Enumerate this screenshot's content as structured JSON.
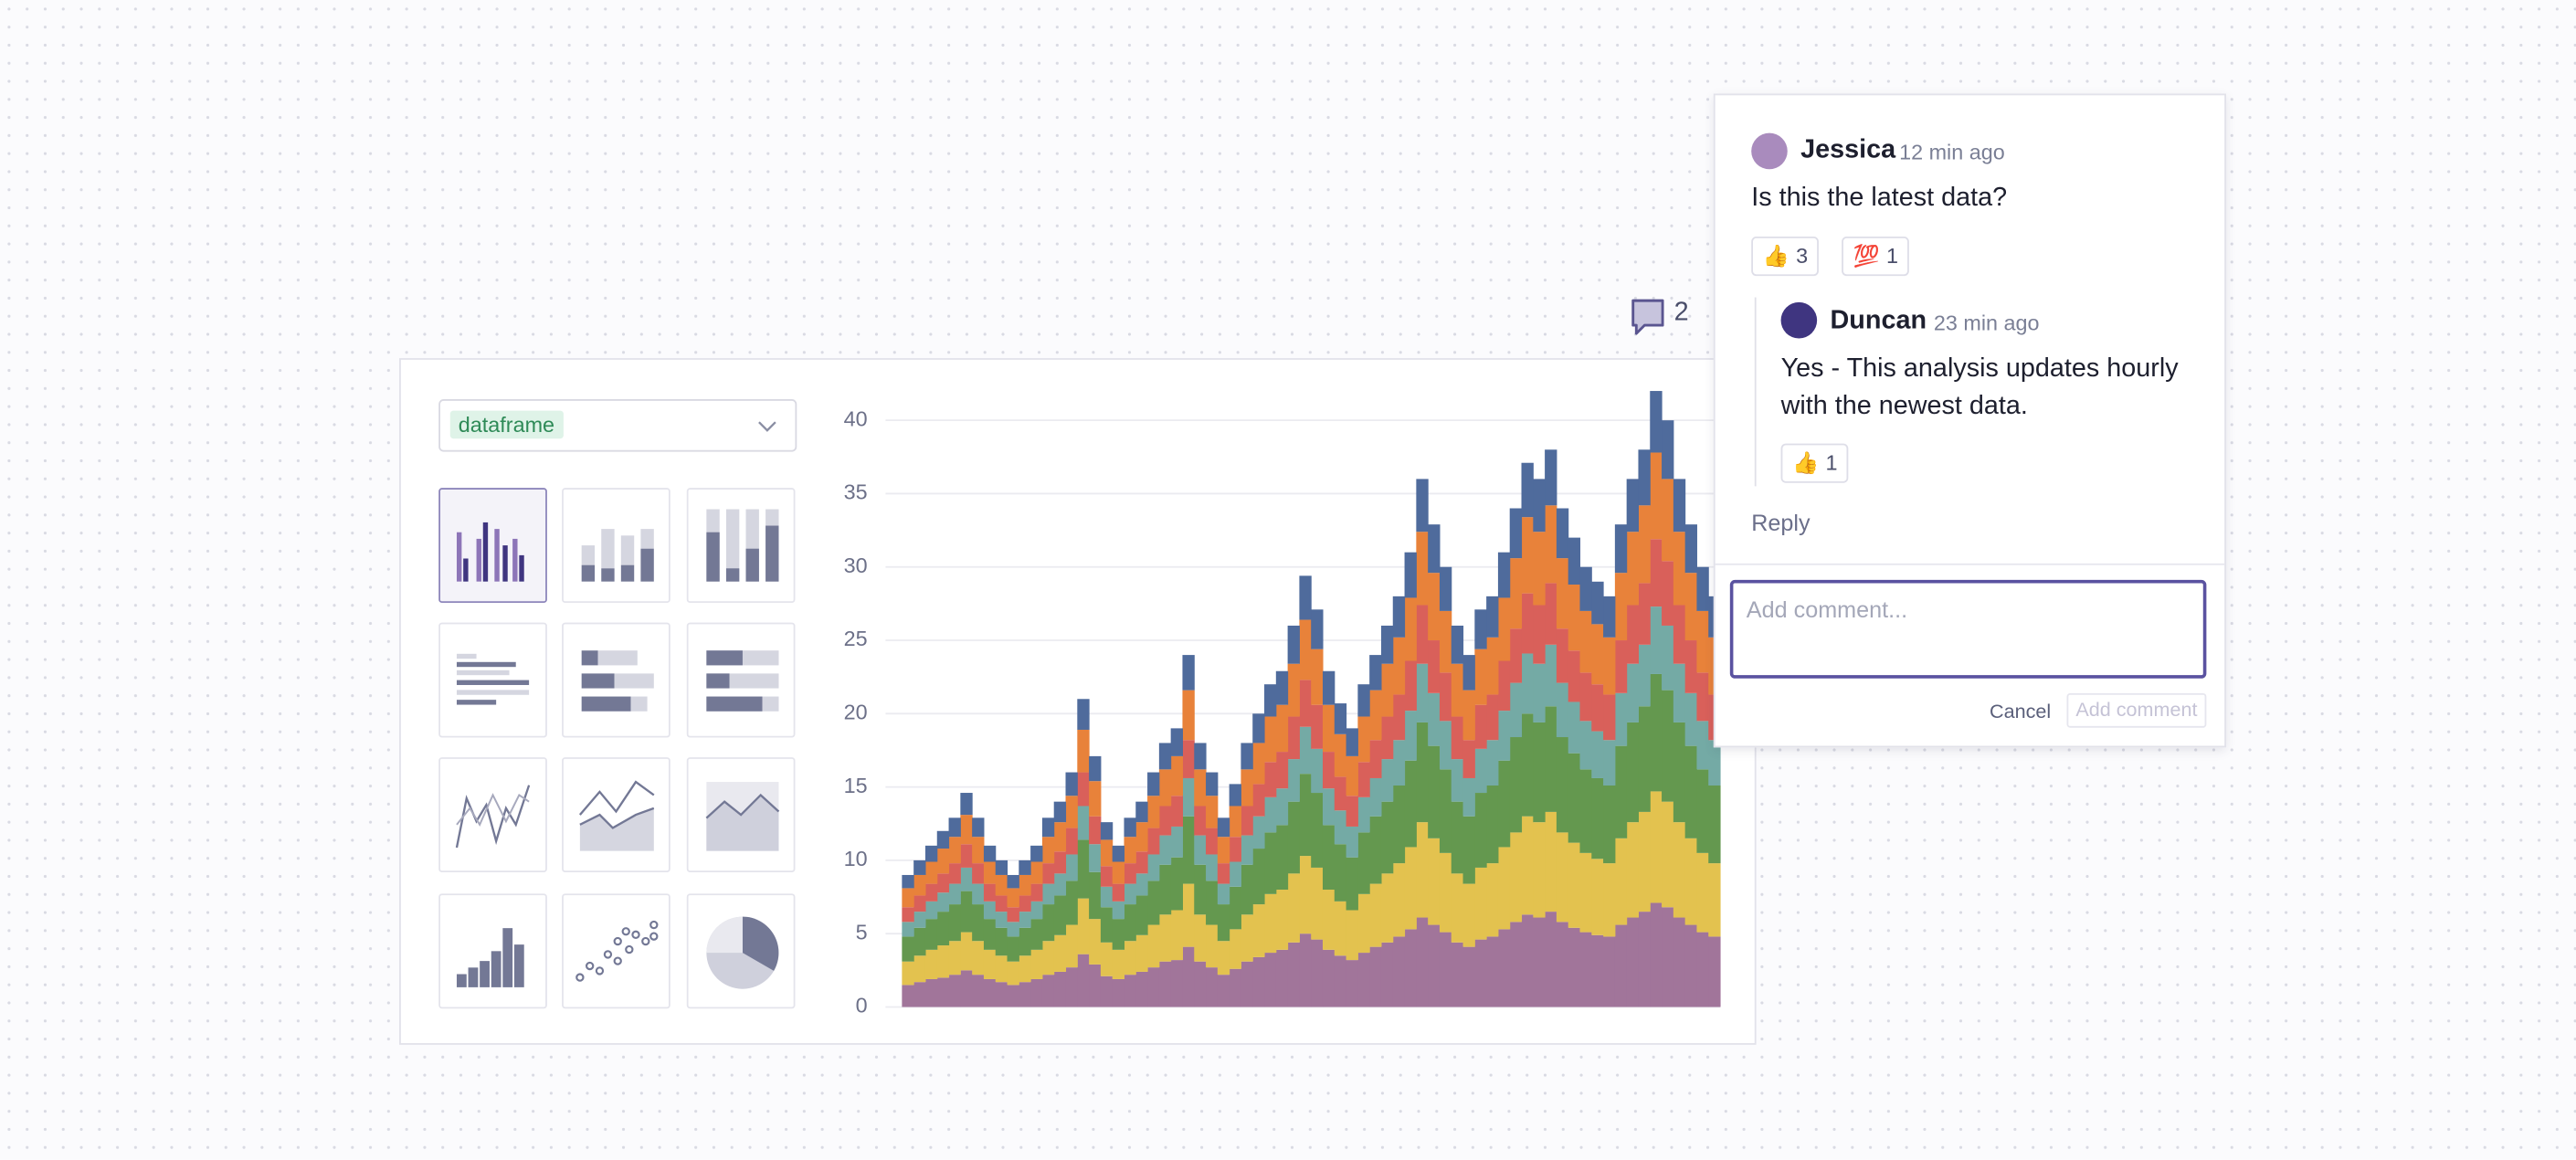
{
  "dropdown": {
    "label": "dataframe"
  },
  "comment_count": 2,
  "comments": [
    {
      "author": "Jessica",
      "time": "12 min ago",
      "text": "Is this the latest data?",
      "reactions": [
        {
          "emoji": "👍",
          "count": 3
        },
        {
          "emoji": "💯",
          "count": 1
        }
      ]
    },
    {
      "author": "Duncan",
      "time": "23 min ago",
      "text": "Yes - This analysis updates hourly with the newest data.",
      "reactions": [
        {
          "emoji": "👍",
          "count": 1
        }
      ]
    }
  ],
  "reply": "Reply",
  "input": {
    "placeholder": "Add comment...",
    "cancel": "Cancel",
    "submit": "Add comment"
  },
  "chart_data": {
    "type": "bar",
    "stacked": true,
    "grid": true,
    "ylim": [
      0,
      42
    ],
    "yticks": [
      0,
      5,
      10,
      15,
      20,
      25,
      30,
      35,
      40
    ],
    "series": [
      {
        "color": "#a1759a",
        "values": [
          1.5,
          1.7,
          1.9,
          2.0,
          2.2,
          2.5,
          2.2,
          1.9,
          1.7,
          1.5,
          1.7,
          1.9,
          2.2,
          2.4,
          2.7,
          3.6,
          2.9,
          2.1,
          1.9,
          2.2,
          2.4,
          2.7,
          3.1,
          3.2,
          4.1,
          3.1,
          2.7,
          2.2,
          2.6,
          3.1,
          3.4,
          3.7,
          3.9,
          4.4,
          5.0,
          4.6,
          3.9,
          3.5,
          3.2,
          3.7,
          4.1,
          4.4,
          4.8,
          5.3,
          6.1,
          5.6,
          5.1,
          4.4,
          4.1,
          4.6,
          4.8,
          5.3,
          5.8,
          6.3,
          6.1,
          6.5,
          5.8,
          5.4,
          5.1,
          4.9,
          4.8,
          5.6,
          6.1,
          6.5,
          7.1,
          6.8,
          6.1,
          5.6,
          5.1,
          4.8
        ]
      },
      {
        "color": "#e3c24f",
        "values": [
          1.6,
          1.8,
          2.0,
          2.2,
          2.3,
          2.6,
          2.3,
          2.0,
          1.8,
          1.6,
          1.8,
          2.0,
          2.3,
          2.5,
          2.9,
          3.8,
          3.1,
          2.3,
          2.0,
          2.3,
          2.5,
          2.9,
          3.2,
          3.4,
          4.3,
          3.2,
          2.9,
          2.3,
          2.7,
          3.2,
          3.6,
          4.0,
          4.1,
          4.7,
          5.3,
          4.9,
          4.1,
          3.7,
          3.4,
          4.0,
          4.3,
          4.7,
          5.0,
          5.6,
          6.5,
          5.9,
          5.4,
          4.7,
          4.3,
          4.9,
          5.0,
          5.6,
          6.1,
          6.7,
          6.5,
          6.8,
          6.1,
          5.8,
          5.4,
          5.2,
          5.0,
          5.9,
          6.5,
          6.8,
          7.6,
          7.2,
          6.5,
          5.9,
          5.4,
          5.0
        ]
      },
      {
        "color": "#64984f",
        "values": [
          1.7,
          1.9,
          2.1,
          2.3,
          2.5,
          2.8,
          2.5,
          2.1,
          1.9,
          1.7,
          1.9,
          2.1,
          2.5,
          2.7,
          3.0,
          4.0,
          3.2,
          2.4,
          2.1,
          2.5,
          2.7,
          3.0,
          3.4,
          3.6,
          4.6,
          3.4,
          3.0,
          2.5,
          2.9,
          3.4,
          3.8,
          4.2,
          4.4,
          4.9,
          5.6,
          5.1,
          4.4,
          3.9,
          3.6,
          4.2,
          4.6,
          4.9,
          5.3,
          5.9,
          6.8,
          6.3,
          5.7,
          4.9,
          4.6,
          5.1,
          5.3,
          5.9,
          6.5,
          7.0,
          6.8,
          7.2,
          6.5,
          6.1,
          5.7,
          5.5,
          5.3,
          6.3,
          6.8,
          7.2,
          8.0,
          7.6,
          6.8,
          6.3,
          5.7,
          5.3
        ]
      },
      {
        "color": "#74aaa5",
        "values": [
          1.0,
          1.1,
          1.2,
          1.3,
          1.4,
          1.6,
          1.4,
          1.2,
          1.1,
          1.0,
          1.1,
          1.2,
          1.4,
          1.5,
          1.8,
          2.3,
          1.9,
          1.4,
          1.2,
          1.4,
          1.5,
          1.8,
          2.0,
          2.1,
          2.6,
          2.0,
          1.8,
          1.4,
          1.7,
          2.0,
          2.2,
          2.4,
          2.5,
          2.9,
          3.2,
          3.0,
          2.5,
          2.3,
          2.1,
          2.4,
          2.6,
          2.9,
          3.1,
          3.4,
          4.0,
          3.6,
          3.3,
          2.9,
          2.6,
          3.0,
          3.1,
          3.4,
          3.7,
          4.1,
          4.0,
          4.2,
          3.7,
          3.5,
          3.3,
          3.2,
          3.1,
          3.6,
          4.0,
          4.2,
          4.6,
          4.4,
          4.0,
          3.6,
          3.3,
          3.1
        ]
      },
      {
        "color": "#d9605a",
        "values": [
          1.0,
          1.1,
          1.2,
          1.3,
          1.4,
          1.6,
          1.4,
          1.2,
          1.1,
          1.0,
          1.1,
          1.2,
          1.4,
          1.5,
          1.8,
          2.3,
          1.9,
          1.4,
          1.2,
          1.4,
          1.5,
          1.8,
          2.0,
          2.1,
          2.6,
          2.0,
          1.8,
          1.4,
          1.7,
          2.0,
          2.2,
          2.4,
          2.5,
          2.9,
          3.2,
          3.0,
          2.5,
          2.3,
          2.1,
          2.4,
          2.6,
          2.9,
          3.1,
          3.4,
          4.0,
          3.6,
          3.3,
          2.9,
          2.6,
          3.0,
          3.1,
          3.4,
          3.7,
          4.1,
          4.0,
          4.2,
          3.7,
          3.5,
          3.3,
          3.2,
          3.1,
          3.6,
          4.0,
          4.2,
          4.6,
          4.4,
          4.0,
          3.6,
          3.3,
          3.1
        ]
      },
      {
        "color": "#e8823a",
        "values": [
          1.3,
          1.4,
          1.5,
          1.7,
          1.8,
          2.0,
          1.8,
          1.5,
          1.4,
          1.3,
          1.4,
          1.5,
          1.8,
          2.0,
          2.2,
          2.9,
          2.4,
          1.8,
          1.5,
          1.8,
          2.0,
          2.2,
          2.5,
          2.7,
          3.4,
          2.5,
          2.2,
          1.8,
          2.1,
          2.5,
          2.8,
          3.1,
          3.2,
          3.6,
          4.1,
          3.8,
          3.2,
          2.9,
          2.7,
          3.1,
          3.4,
          3.6,
          3.9,
          4.3,
          5.0,
          4.6,
          4.2,
          3.6,
          3.4,
          3.8,
          3.9,
          4.3,
          4.8,
          5.2,
          5.0,
          5.3,
          4.8,
          4.5,
          4.2,
          4.1,
          3.9,
          4.6,
          5.0,
          5.3,
          5.9,
          5.6,
          5.0,
          4.6,
          4.2,
          3.9
        ]
      },
      {
        "color": "#4f6b9c",
        "values": [
          0.9,
          1.0,
          1.1,
          1.2,
          1.3,
          1.5,
          1.3,
          1.1,
          1.0,
          0.9,
          1.0,
          1.1,
          1.3,
          1.4,
          1.6,
          2.1,
          1.7,
          1.2,
          1.1,
          1.3,
          1.4,
          1.6,
          1.8,
          1.9,
          2.4,
          1.8,
          1.6,
          1.3,
          1.5,
          1.8,
          2.0,
          2.2,
          2.3,
          2.6,
          3.0,
          2.7,
          2.3,
          2.1,
          1.9,
          2.2,
          2.4,
          2.6,
          2.8,
          3.1,
          3.6,
          3.3,
          3.0,
          2.6,
          2.4,
          2.7,
          2.8,
          3.1,
          3.4,
          3.7,
          3.6,
          3.8,
          3.4,
          3.2,
          3.0,
          2.9,
          2.8,
          3.3,
          3.6,
          3.8,
          4.2,
          4.0,
          3.6,
          3.3,
          3.0,
          2.8
        ]
      }
    ]
  }
}
